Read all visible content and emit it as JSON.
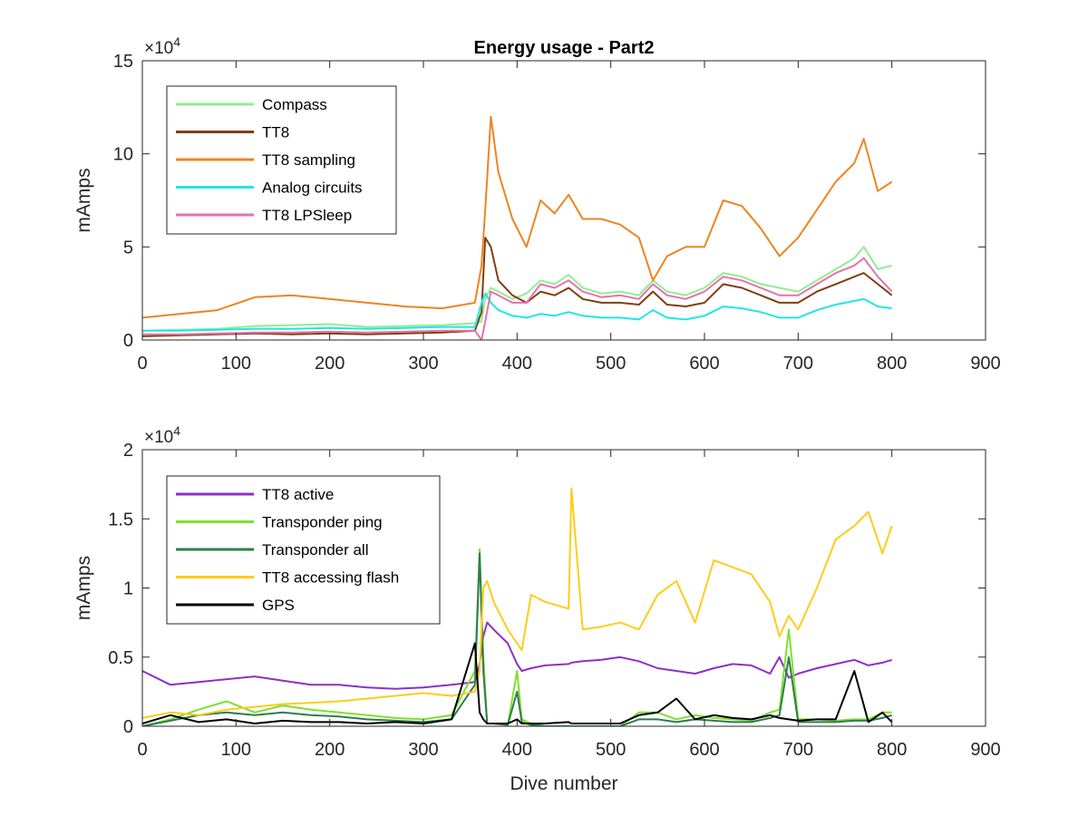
{
  "chart_data": [
    {
      "type": "line",
      "title": "Energy usage - Part2",
      "xlabel": "",
      "ylabel": "mAmps",
      "y_exponent_base": "×10",
      "y_exponent_power": "4",
      "xlim": [
        0,
        900
      ],
      "ylim": [
        0,
        15
      ],
      "xticks": [
        "0",
        "100",
        "200",
        "300",
        "400",
        "500",
        "600",
        "700",
        "800",
        "900"
      ],
      "yticks": [
        "0",
        "5",
        "10",
        "15"
      ],
      "grid": false,
      "legend_position": "top-left",
      "x": [
        0,
        40,
        80,
        120,
        160,
        200,
        240,
        280,
        320,
        355,
        362,
        366,
        372,
        380,
        395,
        410,
        425,
        440,
        455,
        470,
        490,
        510,
        530,
        545,
        560,
        580,
        600,
        620,
        640,
        660,
        680,
        700,
        720,
        740,
        760,
        770,
        785,
        800
      ],
      "series": [
        {
          "name": "Compass",
          "color": "#90ee90",
          "values": [
            0.5,
            0.55,
            0.6,
            0.75,
            0.8,
            0.85,
            0.7,
            0.75,
            0.8,
            0.9,
            1.0,
            2.2,
            2.8,
            2.6,
            2.2,
            2.5,
            3.2,
            3.0,
            3.5,
            2.8,
            2.5,
            2.6,
            2.4,
            3.2,
            2.6,
            2.4,
            2.8,
            3.6,
            3.4,
            3.0,
            2.8,
            2.6,
            3.2,
            3.8,
            4.4,
            5.0,
            3.8,
            4.0
          ]
        },
        {
          "name": "TT8",
          "color": "#7f3f10",
          "values": [
            0.2,
            0.25,
            0.3,
            0.35,
            0.3,
            0.35,
            0.3,
            0.35,
            0.4,
            0.5,
            1.5,
            5.5,
            5.0,
            3.2,
            2.4,
            2.0,
            2.6,
            2.4,
            2.8,
            2.2,
            2.0,
            2.0,
            1.9,
            2.6,
            1.9,
            1.8,
            2.0,
            3.0,
            2.8,
            2.4,
            2.0,
            2.0,
            2.6,
            3.0,
            3.4,
            3.6,
            3.0,
            2.4
          ]
        },
        {
          "name": "TT8 sampling",
          "color": "#ed8520",
          "values": [
            1.2,
            1.4,
            1.6,
            2.3,
            2.4,
            2.2,
            2.0,
            1.8,
            1.7,
            2.0,
            4.0,
            7.0,
            12.0,
            9.0,
            6.5,
            5.0,
            7.5,
            6.8,
            7.8,
            6.5,
            6.5,
            6.2,
            5.5,
            3.2,
            4.5,
            5.0,
            5.0,
            7.5,
            7.2,
            6.0,
            4.5,
            5.5,
            7.0,
            8.5,
            9.5,
            10.8,
            8.0,
            8.5
          ]
        },
        {
          "name": "Analog circuits",
          "color": "#22e5e5",
          "values": [
            0.5,
            0.5,
            0.55,
            0.6,
            0.6,
            0.65,
            0.6,
            0.65,
            0.7,
            0.7,
            2.0,
            2.5,
            2.0,
            1.6,
            1.3,
            1.2,
            1.4,
            1.3,
            1.5,
            1.3,
            1.2,
            1.2,
            1.1,
            1.6,
            1.2,
            1.1,
            1.3,
            1.8,
            1.7,
            1.5,
            1.2,
            1.2,
            1.6,
            1.9,
            2.1,
            2.2,
            1.8,
            1.7
          ]
        },
        {
          "name": "TT8 LPSleep",
          "color": "#e572ad",
          "values": [
            0.3,
            0.3,
            0.35,
            0.4,
            0.4,
            0.45,
            0.4,
            0.45,
            0.5,
            0.5,
            0.0,
            1.0,
            2.6,
            2.4,
            2.0,
            2.0,
            3.0,
            2.8,
            3.2,
            2.6,
            2.3,
            2.4,
            2.2,
            3.0,
            2.4,
            2.2,
            2.6,
            3.4,
            3.2,
            2.8,
            2.4,
            2.4,
            3.0,
            3.6,
            4.0,
            4.4,
            3.4,
            2.6
          ]
        }
      ]
    },
    {
      "type": "line",
      "title": "",
      "xlabel": "Dive number",
      "ylabel": "mAmps",
      "y_exponent_base": "×10",
      "y_exponent_power": "4",
      "xlim": [
        0,
        900
      ],
      "ylim": [
        0,
        2
      ],
      "xticks": [
        "0",
        "100",
        "200",
        "300",
        "400",
        "500",
        "600",
        "700",
        "800",
        "900"
      ],
      "yticks": [
        "0",
        "0.5",
        "1",
        "1.5",
        "2"
      ],
      "grid": false,
      "legend_position": "top-left",
      "x": [
        0,
        30,
        60,
        90,
        120,
        150,
        180,
        210,
        240,
        270,
        300,
        330,
        355,
        360,
        364,
        368,
        375,
        390,
        400,
        405,
        415,
        430,
        455,
        458,
        470,
        490,
        510,
        530,
        550,
        570,
        590,
        610,
        630,
        650,
        670,
        680,
        690,
        700,
        720,
        740,
        760,
        775,
        790,
        800
      ],
      "series": [
        {
          "name": "TT8 active",
          "color": "#8e2fc4",
          "values": [
            0.4,
            0.3,
            0.32,
            0.34,
            0.36,
            0.33,
            0.3,
            0.3,
            0.28,
            0.27,
            0.28,
            0.3,
            0.32,
            0.45,
            0.65,
            0.75,
            0.7,
            0.6,
            0.45,
            0.4,
            0.42,
            0.44,
            0.45,
            0.46,
            0.47,
            0.48,
            0.5,
            0.47,
            0.42,
            0.4,
            0.38,
            0.42,
            0.45,
            0.44,
            0.38,
            0.5,
            0.35,
            0.38,
            0.42,
            0.45,
            0.48,
            0.44,
            0.46,
            0.48
          ]
        },
        {
          "name": "Transponder ping",
          "color": "#7fe02c",
          "values": [
            0.0,
            0.05,
            0.12,
            0.18,
            0.1,
            0.15,
            0.12,
            0.1,
            0.08,
            0.06,
            0.05,
            0.08,
            0.4,
            1.28,
            0.5,
            0.02,
            0.02,
            0.01,
            0.4,
            0.05,
            0.02,
            0.0,
            0.0,
            0.0,
            0.0,
            0.0,
            0.0,
            0.1,
            0.1,
            0.05,
            0.08,
            0.06,
            0.05,
            0.04,
            0.1,
            0.12,
            0.7,
            0.05,
            0.05,
            0.04,
            0.05,
            0.05,
            0.1,
            0.1
          ]
        },
        {
          "name": "Transponder all",
          "color": "#2e7d4f",
          "values": [
            0.0,
            0.04,
            0.08,
            0.1,
            0.08,
            0.1,
            0.08,
            0.07,
            0.05,
            0.04,
            0.03,
            0.05,
            0.3,
            1.25,
            0.4,
            0.02,
            0.02,
            0.01,
            0.25,
            0.03,
            0.01,
            0.0,
            0.0,
            0.0,
            0.0,
            0.0,
            0.0,
            0.05,
            0.05,
            0.03,
            0.05,
            0.04,
            0.03,
            0.03,
            0.06,
            0.08,
            0.5,
            0.03,
            0.03,
            0.03,
            0.04,
            0.04,
            0.06,
            0.08
          ]
        },
        {
          "name": "TT8 accessing flash",
          "color": "#ffcc19",
          "values": [
            0.06,
            0.1,
            0.08,
            0.12,
            0.14,
            0.16,
            0.17,
            0.18,
            0.2,
            0.22,
            0.24,
            0.22,
            0.25,
            0.4,
            1.0,
            1.05,
            0.9,
            0.7,
            0.6,
            0.55,
            0.95,
            0.9,
            0.85,
            1.72,
            0.7,
            0.72,
            0.75,
            0.7,
            0.95,
            1.05,
            0.75,
            1.2,
            1.15,
            1.1,
            0.9,
            0.65,
            0.8,
            0.7,
            1.0,
            1.35,
            1.45,
            1.55,
            1.25,
            1.45
          ]
        },
        {
          "name": "GPS",
          "color": "#000000",
          "values": [
            0.02,
            0.08,
            0.03,
            0.05,
            0.02,
            0.04,
            0.03,
            0.03,
            0.02,
            0.03,
            0.02,
            0.05,
            0.6,
            0.1,
            0.05,
            0.02,
            0.02,
            0.02,
            0.05,
            0.02,
            0.02,
            0.02,
            0.03,
            0.02,
            0.02,
            0.02,
            0.02,
            0.08,
            0.1,
            0.2,
            0.05,
            0.08,
            0.06,
            0.05,
            0.08,
            0.06,
            0.05,
            0.04,
            0.05,
            0.05,
            0.4,
            0.03,
            0.1,
            0.03
          ]
        }
      ]
    }
  ]
}
